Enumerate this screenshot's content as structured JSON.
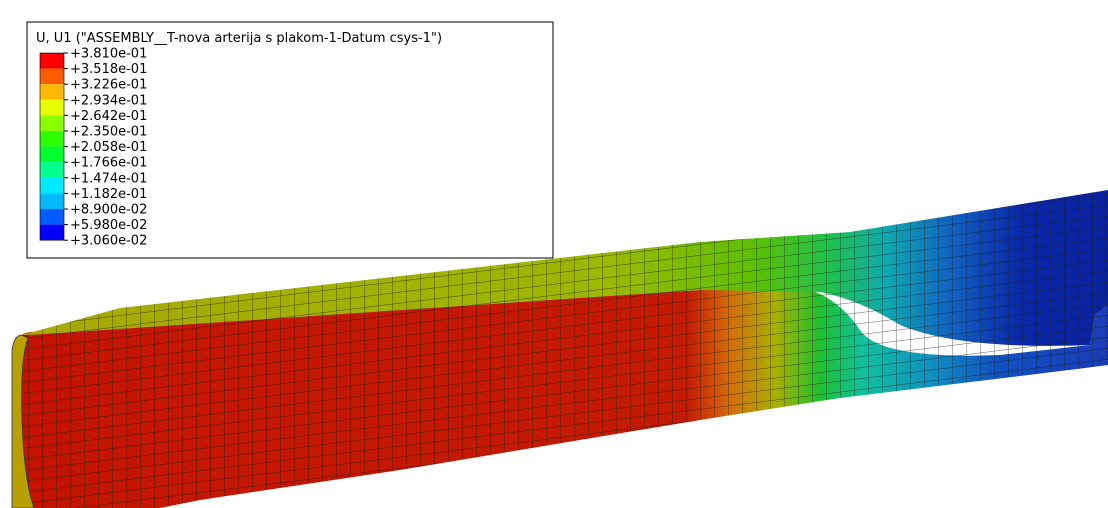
{
  "legend": {
    "title": "U, U1 (\"ASSEMBLY__T-nova arterija s plakom-1-Datum csys-1\")",
    "labels": [
      "+3.810e-01",
      "+3.518e-01",
      "+3.226e-01",
      "+2.934e-01",
      "+2.642e-01",
      "+2.350e-01",
      "+2.058e-01",
      "+1.766e-01",
      "+1.474e-01",
      "+1.182e-01",
      "+8.900e-02",
      "+5.980e-02",
      "+3.060e-02"
    ],
    "colors": [
      "#ff0000",
      "#ff5c00",
      "#ffb900",
      "#e8ff00",
      "#8bff00",
      "#2eff00",
      "#00ff2e",
      "#00ff8b",
      "#00e8ff",
      "#00b9ff",
      "#005cff",
      "#0000ff"
    ]
  }
}
